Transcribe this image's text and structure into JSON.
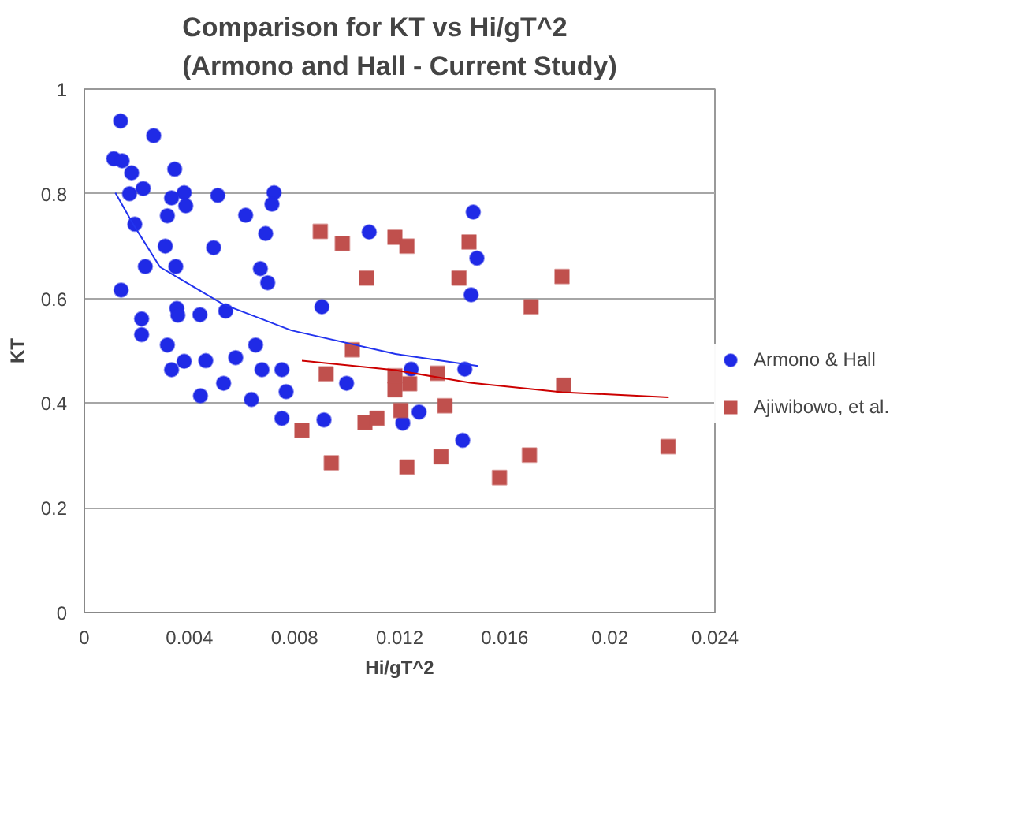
{
  "chart_data": {
    "type": "scatter",
    "title": "Comparison for KT vs Hi/gT^2\n(Armono and Hall - Current Study)",
    "xlabel": "Hi/gT^2",
    "ylabel": "KT",
    "xlim": [
      0,
      0.024
    ],
    "xticks": [
      0,
      0.004,
      0.008,
      0.012,
      0.016,
      0.02,
      0.024
    ],
    "ylim": [
      0,
      1
    ],
    "yticks": [
      0,
      0.2,
      0.4,
      0.6,
      0.8,
      1
    ],
    "grid": "y",
    "legend": "right",
    "series": [
      {
        "name": "Armono & Hall",
        "color": "#1f2ae6",
        "marker": "circle",
        "x": [
          0.00138,
          0.00264,
          0.00112,
          0.00144,
          0.0018,
          0.00344,
          0.00172,
          0.00224,
          0.00332,
          0.0038,
          0.00386,
          0.00508,
          0.00722,
          0.00714,
          0.00316,
          0.00614,
          0.00192,
          0.0069,
          0.00308,
          0.00492,
          0.00232,
          0.00348,
          0.0067,
          0.00698,
          0.0014,
          0.00904,
          0.00352,
          0.00356,
          0.0044,
          0.00538,
          0.00218,
          0.00218,
          0.00316,
          0.00652,
          0.00332,
          0.0038,
          0.00462,
          0.00576,
          0.00676,
          0.00752,
          0.00998,
          0.00442,
          0.0053,
          0.00636,
          0.00768,
          0.00752,
          0.00912,
          0.01084,
          0.0148,
          0.01494,
          0.01472,
          0.01244,
          0.01448,
          0.01274,
          0.01212,
          0.0144
        ],
        "values": [
          0.939,
          0.911,
          0.867,
          0.863,
          0.84,
          0.847,
          0.8,
          0.81,
          0.792,
          0.802,
          0.777,
          0.797,
          0.802,
          0.78,
          0.758,
          0.759,
          0.742,
          0.724,
          0.7,
          0.697,
          0.661,
          0.661,
          0.657,
          0.63,
          0.616,
          0.584,
          0.581,
          0.568,
          0.569,
          0.576,
          0.561,
          0.531,
          0.511,
          0.511,
          0.464,
          0.48,
          0.481,
          0.487,
          0.464,
          0.464,
          0.438,
          0.414,
          0.438,
          0.407,
          0.422,
          0.371,
          0.368,
          0.727,
          0.765,
          0.677,
          0.607,
          0.465,
          0.465,
          0.383,
          0.362,
          0.329
        ]
      },
      {
        "name": "Ajiwibowo, et al.",
        "color": "#c0504d",
        "marker": "square",
        "x": [
          0.00898,
          0.00982,
          0.01074,
          0.0102,
          0.0092,
          0.00828,
          0.0094,
          0.01068,
          0.01114,
          0.01182,
          0.01228,
          0.01464,
          0.01426,
          0.01818,
          0.017,
          0.01182,
          0.01182,
          0.01238,
          0.01344,
          0.01824,
          0.01204,
          0.01372,
          0.01228,
          0.01358,
          0.0158,
          0.01694,
          0.02222
        ],
        "values": [
          0.728,
          0.705,
          0.639,
          0.502,
          0.456,
          0.348,
          0.286,
          0.363,
          0.371,
          0.717,
          0.7,
          0.708,
          0.639,
          0.642,
          0.584,
          0.452,
          0.426,
          0.437,
          0.457,
          0.434,
          0.386,
          0.395,
          0.278,
          0.298,
          0.258,
          0.301,
          0.317
        ]
      },
      {
        "type": "line",
        "color": "#2233ee",
        "x": [
          0.00118,
          0.00188,
          0.00288,
          0.00528,
          0.00788,
          0.01184,
          0.01498
        ],
        "values": [
          0.802,
          0.74,
          0.66,
          0.589,
          0.539,
          0.494,
          0.471
        ]
      },
      {
        "type": "line",
        "color": "#cc0000",
        "x": [
          0.00828,
          0.01184,
          0.01468,
          0.01818,
          0.02224
        ],
        "values": [
          0.481,
          0.463,
          0.439,
          0.421,
          0.411
        ]
      }
    ]
  }
}
